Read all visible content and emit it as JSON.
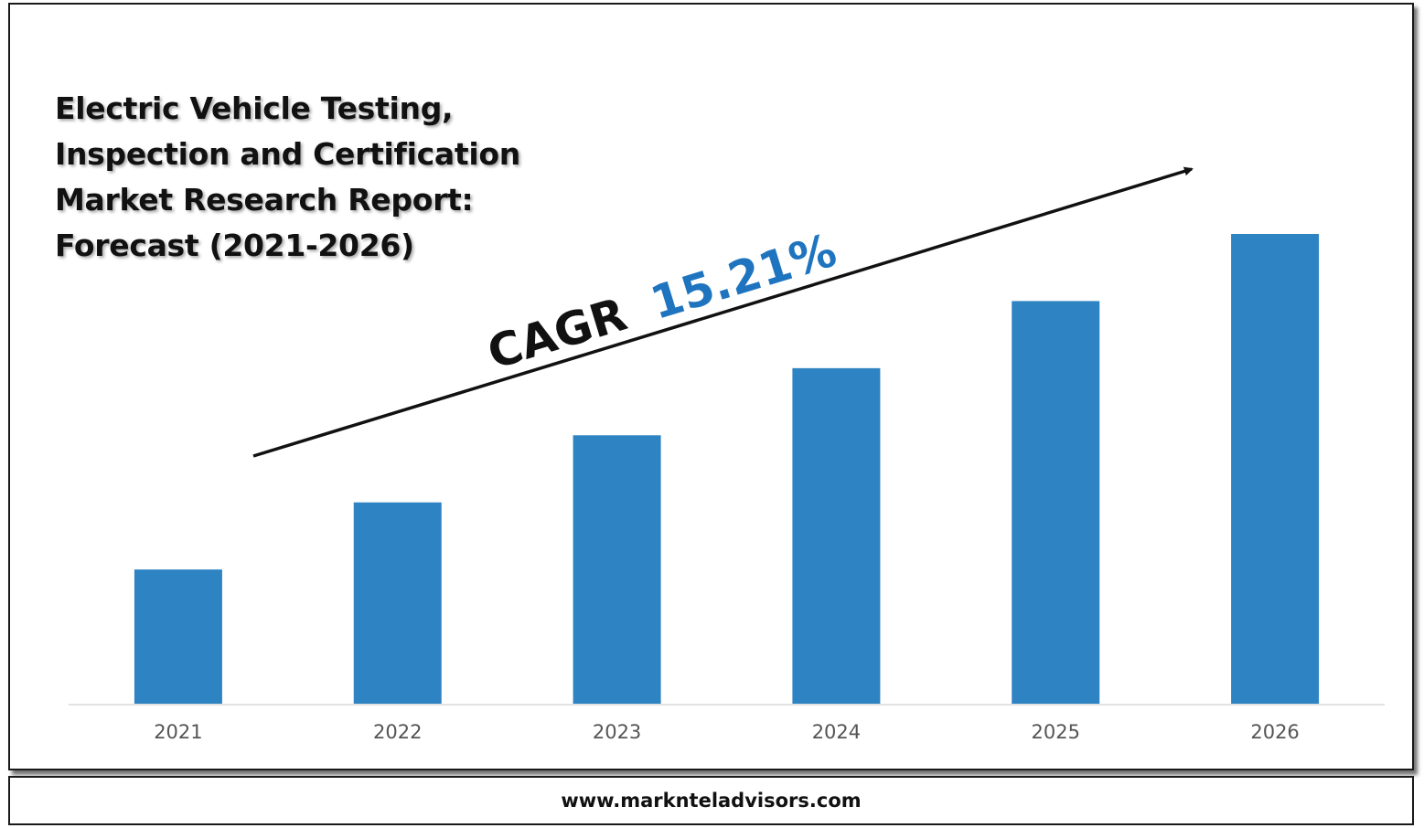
{
  "title_lines": [
    "Electric Vehicle Testing,",
    "Inspection and Certification",
    "Market Research Report:",
    "Forecast (2021-2026)"
  ],
  "cagr": {
    "prefix": "CAGR",
    "value": "15.21%"
  },
  "footer": {
    "url": "www.markntel­advisors.com"
  },
  "colors": {
    "bar": "#2e83c3",
    "cagr_value": "#1f74bf",
    "text": "#111111",
    "axis_label": "#555555"
  },
  "chart_data": {
    "type": "bar",
    "categories": [
      "2021",
      "2022",
      "2023",
      "2024",
      "2025",
      "2026"
    ],
    "values": [
      1,
      1.5,
      2,
      2.5,
      3,
      3.5
    ],
    "ylim": [
      0,
      3.5
    ],
    "title": "",
    "xlabel": "",
    "ylabel": "",
    "grid": false,
    "legend": "none"
  }
}
